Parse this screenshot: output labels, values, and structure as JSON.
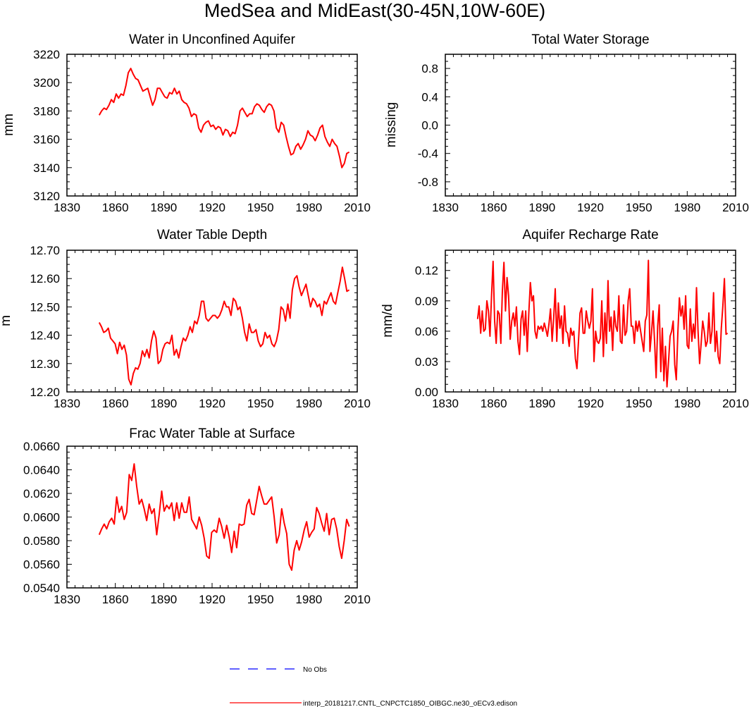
{
  "figure": {
    "title": "MedSea and MidEast(30-45N,10W-60E)",
    "line_color": "#ff0000",
    "obs_color": "#0000ff",
    "legend": {
      "obs_label": "No Obs",
      "model_label": "interp_20181217.CNTL_CNPCTC1850_OIBGC.ne30_oECv3.edison"
    }
  },
  "chart_data": [
    {
      "id": "aquifer",
      "type": "line",
      "title": "Water in Unconfined Aquifer",
      "ylabel": "mm",
      "xlim": [
        1830,
        2010
      ],
      "ylim": [
        3120,
        3220
      ],
      "xticks": [
        1830,
        1860,
        1890,
        1920,
        1950,
        1980,
        2010
      ],
      "yticks": [
        3120,
        3140,
        3160,
        3180,
        3200,
        3220
      ],
      "ytick_labels": [
        "3120",
        "3140",
        "3160",
        "3180",
        "3200",
        "3220"
      ],
      "y_minor": 4,
      "x_start": 1850,
      "series": [
        {
          "name": "model",
          "values": [
            3177,
            3180,
            3182,
            3181,
            3184,
            3188,
            3186,
            3192,
            3189,
            3192,
            3191,
            3198,
            3207,
            3210,
            3206,
            3203,
            3202,
            3198,
            3194,
            3195,
            3196,
            3190,
            3184,
            3188,
            3196,
            3196,
            3193,
            3190,
            3189,
            3193,
            3192,
            3196,
            3192,
            3194,
            3188,
            3186,
            3185,
            3182,
            3176,
            3178,
            3177,
            3168,
            3165,
            3170,
            3172,
            3173,
            3169,
            3170,
            3167,
            3169,
            3168,
            3163,
            3167,
            3166,
            3162,
            3165,
            3164,
            3170,
            3180,
            3182,
            3179,
            3176,
            3178,
            3178,
            3183,
            3185,
            3184,
            3181,
            3179,
            3183,
            3185,
            3184,
            3180,
            3168,
            3165,
            3172,
            3170,
            3162,
            3155,
            3149,
            3150,
            3155,
            3157,
            3153,
            3156,
            3160,
            3166,
            3163,
            3162,
            3159,
            3163,
            3168,
            3170,
            3162,
            3158,
            3155,
            3160,
            3157,
            3155,
            3148,
            3140,
            3143,
            3150,
            3151
          ]
        }
      ]
    },
    {
      "id": "tws",
      "type": "line",
      "title": "Total Water Storage",
      "ylabel": "missing",
      "xlim": [
        1830,
        2010
      ],
      "ylim": [
        -1,
        1
      ],
      "xticks": [
        1830,
        1860,
        1890,
        1920,
        1950,
        1980,
        2010
      ],
      "yticks": [
        -0.8,
        -0.4,
        0.0,
        0.4,
        0.8
      ],
      "ytick_labels": [
        "-0.8",
        "-0.4",
        "0.0",
        "0.4",
        "0.8"
      ],
      "y_minor": 4,
      "x_start": 1850,
      "series": []
    },
    {
      "id": "wtd",
      "type": "line",
      "title": "Water Table Depth",
      "ylabel": "m",
      "xlim": [
        1830,
        2010
      ],
      "ylim": [
        12.2,
        12.7
      ],
      "xticks": [
        1830,
        1860,
        1890,
        1920,
        1950,
        1980,
        2010
      ],
      "yticks": [
        12.2,
        12.3,
        12.4,
        12.5,
        12.6,
        12.7
      ],
      "ytick_labels": [
        "12.20",
        "12.30",
        "12.40",
        "12.50",
        "12.60",
        "12.70"
      ],
      "y_minor": 4,
      "x_start": 1850,
      "series": [
        {
          "name": "model",
          "values": [
            12.445,
            12.43,
            12.41,
            12.415,
            12.425,
            12.39,
            12.38,
            12.37,
            12.335,
            12.375,
            12.35,
            12.365,
            12.33,
            12.245,
            12.225,
            12.265,
            12.285,
            12.28,
            12.3,
            12.345,
            12.325,
            12.35,
            12.32,
            12.38,
            12.415,
            12.39,
            12.3,
            12.31,
            12.35,
            12.37,
            12.375,
            12.37,
            12.4,
            12.33,
            12.35,
            12.32,
            12.36,
            12.39,
            12.38,
            12.4,
            12.43,
            12.41,
            12.45,
            12.44,
            12.47,
            12.52,
            12.52,
            12.46,
            12.45,
            12.46,
            12.47,
            12.47,
            12.46,
            12.47,
            12.49,
            12.52,
            12.5,
            12.5,
            12.47,
            12.53,
            12.52,
            12.49,
            12.5,
            12.46,
            12.41,
            12.38,
            12.44,
            12.41,
            12.41,
            12.42,
            12.38,
            12.36,
            12.37,
            12.41,
            12.39,
            12.4,
            12.37,
            12.36,
            12.38,
            12.42,
            12.5,
            12.49,
            12.45,
            12.51,
            12.46,
            12.56,
            12.6,
            12.61,
            12.57,
            12.54,
            12.56,
            12.58,
            12.54,
            12.5,
            12.53,
            12.52,
            12.5,
            12.51,
            12.47,
            12.52,
            12.51,
            12.53,
            12.55,
            12.52,
            12.51,
            12.55,
            12.59,
            12.64,
            12.6,
            12.555,
            12.56
          ]
        }
      ]
    },
    {
      "id": "recharge",
      "type": "line",
      "title": "Aquifer Recharge Rate",
      "ylabel": "mm/d",
      "xlim": [
        1830,
        2010
      ],
      "ylim": [
        0,
        0.14
      ],
      "xticks": [
        1830,
        1860,
        1890,
        1920,
        1950,
        1980,
        2010
      ],
      "yticks": [
        0.0,
        0.03,
        0.06,
        0.09,
        0.12
      ],
      "ytick_labels": [
        "0.00",
        "0.03",
        "0.06",
        "0.09",
        "0.12"
      ],
      "y_minor": 4,
      "x_start": 1850,
      "series": [
        {
          "name": "model",
          "values": [
            0.072,
            0.085,
            0.058,
            0.08,
            0.06,
            0.062,
            0.09,
            0.08,
            0.055,
            0.095,
            0.129,
            0.07,
            0.048,
            0.08,
            0.077,
            0.048,
            0.1,
            0.128,
            0.08,
            0.113,
            0.095,
            0.052,
            0.07,
            0.078,
            0.065,
            0.084,
            0.05,
            0.037,
            0.072,
            0.08,
            0.056,
            0.08,
            0.04,
            0.078,
            0.108,
            0.09,
            0.095,
            0.06,
            0.053,
            0.065,
            0.062,
            0.065,
            0.06,
            0.068,
            0.062,
            0.055,
            0.067,
            0.082,
            0.05,
            0.073,
            0.102,
            0.05,
            0.088,
            0.063,
            0.075,
            0.048,
            0.085,
            0.06,
            0.058,
            0.045,
            0.063,
            0.056,
            0.06,
            0.033,
            0.023,
            0.05,
            0.078,
            0.083,
            0.058,
            0.058,
            0.08,
            0.07,
            0.063,
            0.07,
            0.102,
            0.03,
            0.06,
            0.05,
            0.048,
            0.053,
            0.09,
            0.035,
            0.078,
            0.048,
            0.11,
            0.06,
            0.074,
            0.041,
            0.08,
            0.065,
            0.06,
            0.095,
            0.05,
            0.048,
            0.086,
            0.056,
            0.06,
            0.09,
            0.102,
            0.065,
            0.065,
            0.048,
            0.07,
            0.06,
            0.07,
            0.06,
            0.05,
            0.04,
            0.07,
            0.076,
            0.13,
            0.04,
            0.058,
            0.08,
            0.05,
            0.014,
            0.065,
            0.086,
            0.02,
            0.063,
            0.011,
            0.045,
            0.005,
            0.03,
            0.055,
            0.06,
            0.07,
            0.027,
            0.012,
            0.058,
            0.093,
            0.075,
            0.085,
            0.062,
            0.095,
            0.046,
            0.043,
            0.082,
            0.05,
            0.067,
            0.053,
            0.103,
            0.06,
            0.028,
            0.048,
            0.07,
            0.06,
            0.045,
            0.05,
            0.078,
            0.048,
            0.06,
            0.098,
            0.04,
            0.06,
            0.035,
            0.028,
            0.063,
            0.085,
            0.112,
            0.057,
            0.058
          ]
        }
      ]
    },
    {
      "id": "frac",
      "type": "line",
      "title": "Frac Water Table at Surface",
      "ylabel": "",
      "xlim": [
        1830,
        2010
      ],
      "ylim": [
        0.054,
        0.066
      ],
      "xticks": [
        1830,
        1860,
        1890,
        1920,
        1950,
        1980,
        2010
      ],
      "yticks": [
        0.054,
        0.056,
        0.058,
        0.06,
        0.062,
        0.064,
        0.066
      ],
      "ytick_labels": [
        "0.0540",
        "0.0560",
        "0.0580",
        "0.0600",
        "0.0620",
        "0.0640",
        "0.0660"
      ],
      "y_minor": 4,
      "x_start": 1850,
      "series": [
        {
          "name": "model",
          "values": [
            0.0585,
            0.059,
            0.0594,
            0.059,
            0.0596,
            0.0599,
            0.0594,
            0.0617,
            0.0604,
            0.0609,
            0.0598,
            0.0604,
            0.0636,
            0.0631,
            0.0645,
            0.0626,
            0.0611,
            0.0615,
            0.0607,
            0.0597,
            0.0611,
            0.0603,
            0.0607,
            0.0585,
            0.0602,
            0.0622,
            0.0605,
            0.061,
            0.0607,
            0.0612,
            0.0597,
            0.0612,
            0.0599,
            0.0612,
            0.0604,
            0.0604,
            0.0617,
            0.0598,
            0.0594,
            0.059,
            0.06,
            0.0593,
            0.0582,
            0.0567,
            0.0565,
            0.0587,
            0.0589,
            0.0587,
            0.0599,
            0.0592,
            0.0582,
            0.0593,
            0.0583,
            0.057,
            0.0588,
            0.0574,
            0.0594,
            0.0593,
            0.0594,
            0.061,
            0.0615,
            0.0603,
            0.0602,
            0.0614,
            0.0626,
            0.0618,
            0.0611,
            0.0611,
            0.0614,
            0.0617,
            0.06,
            0.0578,
            0.0585,
            0.0607,
            0.0595,
            0.0586,
            0.056,
            0.0555,
            0.0572,
            0.058,
            0.0572,
            0.0579,
            0.0589,
            0.0596,
            0.0583,
            0.0587,
            0.059,
            0.0608,
            0.0603,
            0.0595,
            0.0588,
            0.0603,
            0.0585,
            0.0598,
            0.0599,
            0.059,
            0.0575,
            0.0565,
            0.058,
            0.0598,
            0.0592
          ]
        }
      ]
    }
  ]
}
